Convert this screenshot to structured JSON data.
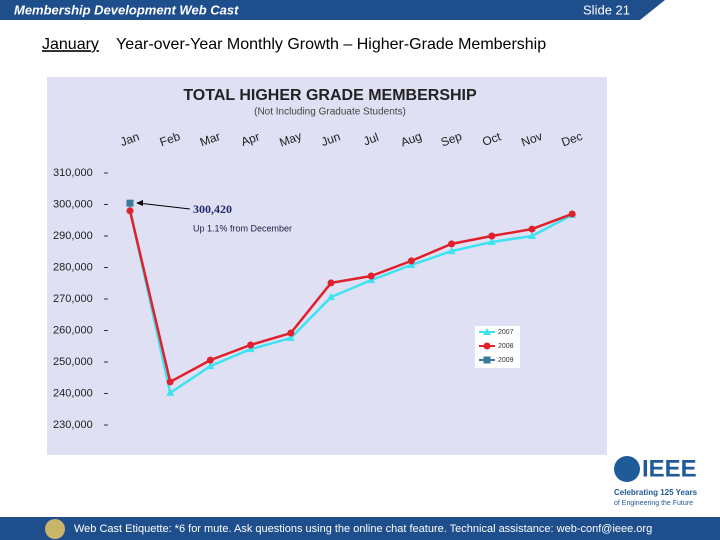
{
  "header": {
    "title": "Membership Development Web Cast",
    "slide": "Slide 21"
  },
  "slide_title": {
    "underlined": "January",
    "rest": "Year-over-Year Monthly Growth – Higher-Grade Membership"
  },
  "footer": "Web Cast Etiquette: *6 for mute.  Ask questions using the online chat feature.  Technical assistance: web-conf@ieee.org",
  "logo": {
    "name": "IEEE",
    "line1": "Celebrating 125 Years",
    "line2": "of Engineering the Future"
  },
  "chart_data": {
    "type": "line",
    "title": "TOTAL HIGHER GRADE MEMBERSHIP",
    "subtitle": "(Not Including Graduate Students)",
    "categories": [
      "Jan",
      "Feb",
      "Mar",
      "Apr",
      "May",
      "Jun",
      "Jul",
      "Aug",
      "Sep",
      "Oct",
      "Nov",
      "Dec"
    ],
    "series": [
      {
        "name": "2007",
        "color": "#3ee3f0",
        "marker": "triangle",
        "values": [
          298300,
          240200,
          248700,
          254100,
          257600,
          270600,
          276000,
          280800,
          285200,
          288100,
          290000,
          296700
        ]
      },
      {
        "name": "2008",
        "color": "#e0202a",
        "marker": "circle",
        "values": [
          298000,
          243700,
          250600,
          255400,
          259200,
          275100,
          277300,
          282100,
          287500,
          290000,
          292200,
          297000
        ]
      },
      {
        "name": "2009",
        "color": "#3a7a9a",
        "marker": "square",
        "values": [
          300420,
          null,
          null,
          null,
          null,
          null,
          null,
          null,
          null,
          null,
          null,
          null
        ],
        "value_labels": [
          "300,420",
          null,
          null,
          null,
          null,
          null,
          null,
          null,
          null,
          null,
          null,
          null
        ]
      }
    ],
    "annotations": [
      "Up 1.1% from December"
    ],
    "ylim": [
      230000,
      310000
    ],
    "yticks": [
      {
        "value": 230000,
        "label": "230,000"
      },
      {
        "value": 240000,
        "label": "240,000"
      },
      {
        "value": 250000,
        "label": "250,000"
      },
      {
        "value": 260000,
        "label": "260,000"
      },
      {
        "value": 270000,
        "label": "270,000"
      },
      {
        "value": 280000,
        "label": "280,000"
      },
      {
        "value": 290000,
        "label": "290,000"
      },
      {
        "value": 300000,
        "label": "300,000"
      },
      {
        "value": 310000,
        "label": "310,000"
      }
    ],
    "grid": false,
    "legend": "lower right"
  }
}
